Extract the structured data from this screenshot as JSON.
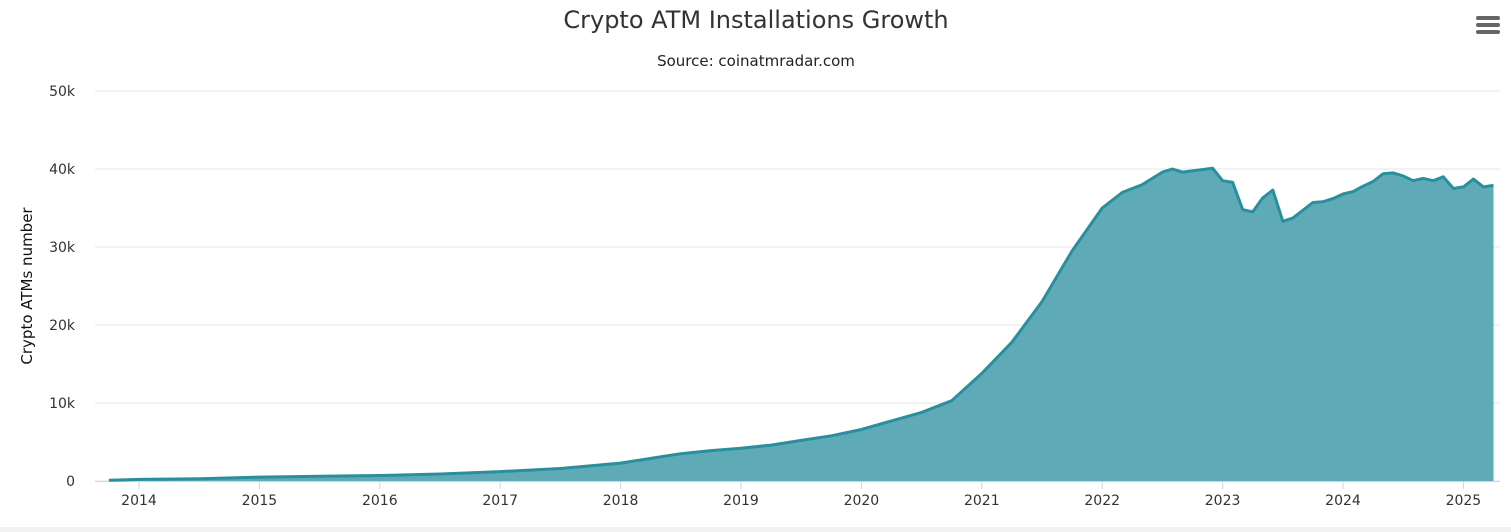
{
  "chart_data": {
    "type": "area",
    "title": "Crypto ATM Installations Growth",
    "subtitle": "Source: coinatmradar.com",
    "ylabel": "Crypto ATMs number",
    "xlabel": "",
    "ylim": [
      0,
      50000
    ],
    "yticks": [
      0,
      10000,
      20000,
      30000,
      40000,
      50000
    ],
    "ytick_labels": [
      "0",
      "10k",
      "20k",
      "30k",
      "40k",
      "50k"
    ],
    "xticks": [
      "2014",
      "2015",
      "2016",
      "2017",
      "2018",
      "2019",
      "2020",
      "2021",
      "2022",
      "2023",
      "2024",
      "2025"
    ],
    "grid": true,
    "legend": "none",
    "colors": {
      "fill": "#5eabb7",
      "line": "#2a8f9c"
    },
    "x": [
      "2013-10",
      "2014-01",
      "2014-07",
      "2015-01",
      "2015-07",
      "2016-01",
      "2016-07",
      "2017-01",
      "2017-07",
      "2018-01",
      "2018-04",
      "2018-07",
      "2018-10",
      "2019-01",
      "2019-04",
      "2019-07",
      "2019-10",
      "2020-01",
      "2020-04",
      "2020-07",
      "2020-10",
      "2021-01",
      "2021-04",
      "2021-07",
      "2021-10",
      "2022-01",
      "2022-03",
      "2022-05",
      "2022-07",
      "2022-08",
      "2022-09",
      "2022-12",
      "2023-01",
      "2023-02",
      "2023-03",
      "2023-04",
      "2023-05",
      "2023-06",
      "2023-07",
      "2023-08",
      "2023-10",
      "2023-11",
      "2023-12",
      "2024-01",
      "2024-02",
      "2024-03",
      "2024-04",
      "2024-05",
      "2024-06",
      "2024-07",
      "2024-08",
      "2024-09",
      "2024-10",
      "2024-11",
      "2024-12",
      "2025-01",
      "2025-02",
      "2025-03",
      "2025-04"
    ],
    "values": [
      100,
      200,
      300,
      500,
      600,
      700,
      900,
      1200,
      1600,
      2300,
      2900,
      3500,
      3900,
      4200,
      4600,
      5200,
      5800,
      6600,
      7700,
      8800,
      10300,
      13800,
      17800,
      23000,
      29500,
      35000,
      37000,
      38000,
      39600,
      40000,
      39600,
      40100,
      38500,
      38300,
      34800,
      34500,
      36300,
      37300,
      33300,
      33700,
      35700,
      35800,
      36200,
      36800,
      37100,
      37800,
      38400,
      39400,
      39500,
      39100,
      38500,
      38800,
      38500,
      39000,
      37500,
      37700,
      38700,
      37700,
      37900
    ]
  },
  "menu": {
    "icon": "hamburger-menu-icon"
  }
}
